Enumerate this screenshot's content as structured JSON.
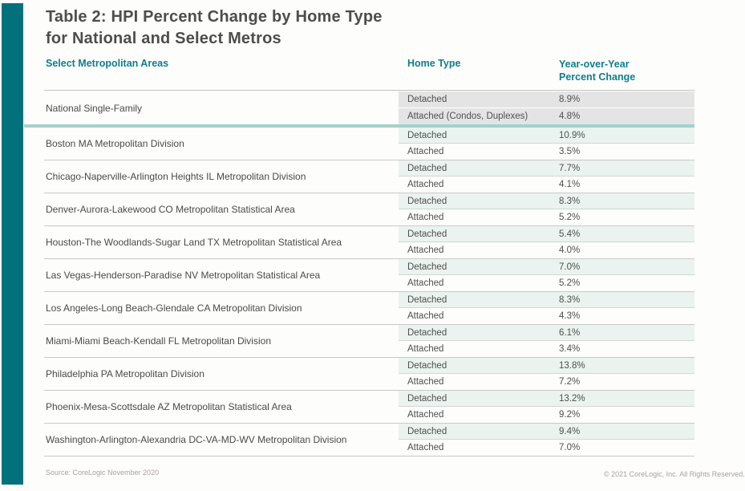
{
  "title": {
    "line1": "Table 2: HPI Percent Change by Home Type",
    "line2": "for National and Select Metros"
  },
  "columns": {
    "metros": "Select Metropolitan Areas",
    "home_type": "Home Type",
    "yoy": "Year-over-Year Percent Change"
  },
  "national": {
    "label": "National Single-Family",
    "rows": [
      {
        "home_type": "Detached",
        "value": "8.9%"
      },
      {
        "home_type": "Attached (Condos, Duplexes)",
        "value": "4.8%"
      }
    ]
  },
  "metros": [
    {
      "name": "Boston MA Metropolitan Division",
      "rows": [
        {
          "home_type": "Detached",
          "value": "10.9%"
        },
        {
          "home_type": "Attached",
          "value": "3.5%"
        }
      ]
    },
    {
      "name": "Chicago-Naperville-Arlington Heights IL Metropolitan Division",
      "rows": [
        {
          "home_type": "Detached",
          "value": "7.7%"
        },
        {
          "home_type": "Attached",
          "value": "4.1%"
        }
      ]
    },
    {
      "name": "Denver-Aurora-Lakewood CO Metropolitan Statistical Area",
      "rows": [
        {
          "home_type": "Detached",
          "value": "8.3%"
        },
        {
          "home_type": "Attached",
          "value": "5.2%"
        }
      ]
    },
    {
      "name": "Houston-The Woodlands-Sugar Land TX Metropolitan Statistical Area",
      "rows": [
        {
          "home_type": "Detached",
          "value": "5.4%"
        },
        {
          "home_type": "Attached",
          "value": "4.0%"
        }
      ]
    },
    {
      "name": "Las Vegas-Henderson-Paradise NV Metropolitan Statistical Area",
      "rows": [
        {
          "home_type": "Detached",
          "value": "7.0%"
        },
        {
          "home_type": "Attached",
          "value": "5.2%"
        }
      ]
    },
    {
      "name": "Los Angeles-Long Beach-Glendale CA Metropolitan Division",
      "rows": [
        {
          "home_type": "Detached",
          "value": "8.3%"
        },
        {
          "home_type": "Attached",
          "value": "4.3%"
        }
      ]
    },
    {
      "name": "Miami-Miami Beach-Kendall FL Metropolitan Division",
      "rows": [
        {
          "home_type": "Detached",
          "value": "6.1%"
        },
        {
          "home_type": "Attached",
          "value": "3.4%"
        }
      ]
    },
    {
      "name": "Philadelphia PA Metropolitan Division",
      "rows": [
        {
          "home_type": "Detached",
          "value": "13.8%"
        },
        {
          "home_type": "Attached",
          "value": "7.2%"
        }
      ]
    },
    {
      "name": "Phoenix-Mesa-Scottsdale AZ Metropolitan Statistical Area",
      "rows": [
        {
          "home_type": "Detached",
          "value": "13.2%"
        },
        {
          "home_type": "Attached",
          "value": "9.2%"
        }
      ]
    },
    {
      "name": "Washington-Arlington-Alexandria DC-VA-MD-WV Metropolitan Division",
      "rows": [
        {
          "home_type": "Detached",
          "value": "9.4%"
        },
        {
          "home_type": "Attached",
          "value": "7.0%"
        }
      ]
    }
  ],
  "footer": {
    "source": "Source: CoreLogic November 2020",
    "copyright": "© 2021 CoreLogic, Inc. All Rights Reserved."
  },
  "colors": {
    "accent_teal": "#03717B",
    "header_teal": "#0E7E8B",
    "divider_teal": "#A0D3CB",
    "national_row_bg": "#E4E4E4",
    "detached_row_bg": "#EAF3EF"
  },
  "chart_data": {
    "type": "table",
    "title": "Table 2: HPI Percent Change by Home Type for National and Select Metros",
    "columns": [
      "Select Metropolitan Areas",
      "Home Type",
      "Year-over-Year Percent Change"
    ],
    "rows": [
      [
        "National Single-Family",
        "Detached",
        "8.9%"
      ],
      [
        "National Single-Family",
        "Attached (Condos, Duplexes)",
        "4.8%"
      ],
      [
        "Boston MA Metropolitan Division",
        "Detached",
        "10.9%"
      ],
      [
        "Boston MA Metropolitan Division",
        "Attached",
        "3.5%"
      ],
      [
        "Chicago-Naperville-Arlington Heights IL Metropolitan Division",
        "Detached",
        "7.7%"
      ],
      [
        "Chicago-Naperville-Arlington Heights IL Metropolitan Division",
        "Attached",
        "4.1%"
      ],
      [
        "Denver-Aurora-Lakewood CO Metropolitan Statistical Area",
        "Detached",
        "8.3%"
      ],
      [
        "Denver-Aurora-Lakewood CO Metropolitan Statistical Area",
        "Attached",
        "5.2%"
      ],
      [
        "Houston-The Woodlands-Sugar Land TX Metropolitan Statistical Area",
        "Detached",
        "5.4%"
      ],
      [
        "Houston-The Woodlands-Sugar Land TX Metropolitan Statistical Area",
        "Attached",
        "4.0%"
      ],
      [
        "Las Vegas-Henderson-Paradise NV Metropolitan Statistical Area",
        "Detached",
        "7.0%"
      ],
      [
        "Las Vegas-Henderson-Paradise NV Metropolitan Statistical Area",
        "Attached",
        "5.2%"
      ],
      [
        "Los Angeles-Long Beach-Glendale CA Metropolitan Division",
        "Detached",
        "8.3%"
      ],
      [
        "Los Angeles-Long Beach-Glendale CA Metropolitan Division",
        "Attached",
        "4.3%"
      ],
      [
        "Miami-Miami Beach-Kendall FL Metropolitan Division",
        "Detached",
        "6.1%"
      ],
      [
        "Miami-Miami Beach-Kendall FL Metropolitan Division",
        "Attached",
        "3.4%"
      ],
      [
        "Philadelphia PA Metropolitan Division",
        "Detached",
        "13.8%"
      ],
      [
        "Philadelphia PA Metropolitan Division",
        "Attached",
        "7.2%"
      ],
      [
        "Phoenix-Mesa-Scottsdale AZ Metropolitan Statistical Area",
        "Detached",
        "13.2%"
      ],
      [
        "Phoenix-Mesa-Scottsdale AZ Metropolitan Statistical Area",
        "Attached",
        "9.2%"
      ],
      [
        "Washington-Arlington-Alexandria DC-VA-MD-WV Metropolitan Division",
        "Detached",
        "9.4%"
      ],
      [
        "Washington-Arlington-Alexandria DC-VA-MD-WV Metropolitan Division",
        "Attached",
        "7.0%"
      ]
    ]
  }
}
